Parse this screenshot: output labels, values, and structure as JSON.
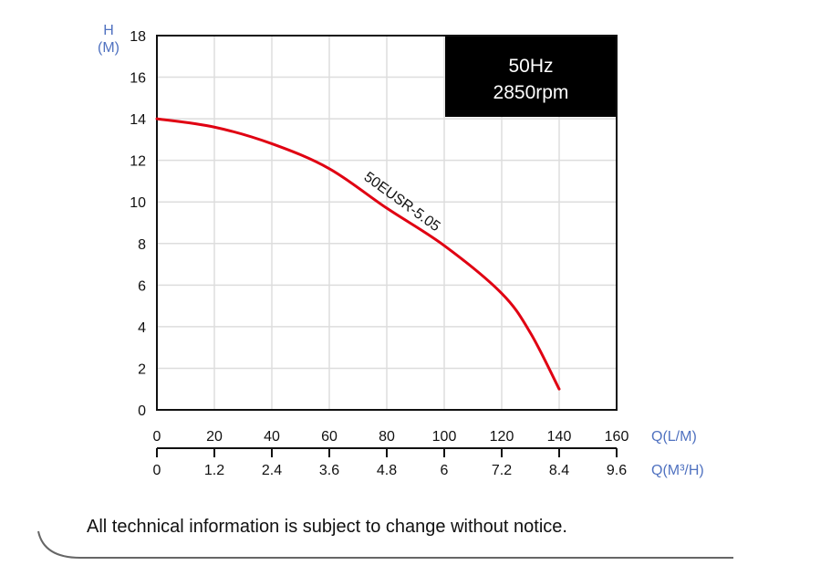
{
  "chart_data": {
    "type": "line",
    "title": "",
    "badge": {
      "line1": "50Hz",
      "line2": "2850rpm"
    },
    "ylabel": {
      "line1": "H",
      "line2": "(M)"
    },
    "xlabel_primary": "Q(L/M)",
    "xlabel_secondary": "Q(M³/H)",
    "ylim": [
      0,
      18
    ],
    "xlim": [
      0,
      160
    ],
    "y_ticks": [
      0,
      2,
      4,
      6,
      8,
      10,
      12,
      14,
      16,
      18
    ],
    "x_ticks_primary": [
      0,
      20,
      40,
      60,
      80,
      100,
      120,
      140,
      160
    ],
    "x_ticks_secondary": [
      "0",
      "1.2",
      "2.4",
      "3.6",
      "4.8",
      "6",
      "7.2",
      "8.4",
      "9.6"
    ],
    "grid": true,
    "series": [
      {
        "name": "50EUSR-5.05",
        "color": "#e00012",
        "x": [
          0,
          20,
          40,
          60,
          80,
          100,
          120,
          130,
          140
        ],
        "values": [
          14.0,
          13.6,
          12.8,
          11.6,
          9.7,
          7.9,
          5.6,
          3.7,
          1.0
        ]
      }
    ]
  },
  "footer": {
    "disclaimer": "All technical information is subject to change without notice."
  },
  "colors": {
    "axis_title": "#5072c0",
    "curve": "#e00012",
    "grid": "#dddddd",
    "badge_bg": "#000000"
  }
}
